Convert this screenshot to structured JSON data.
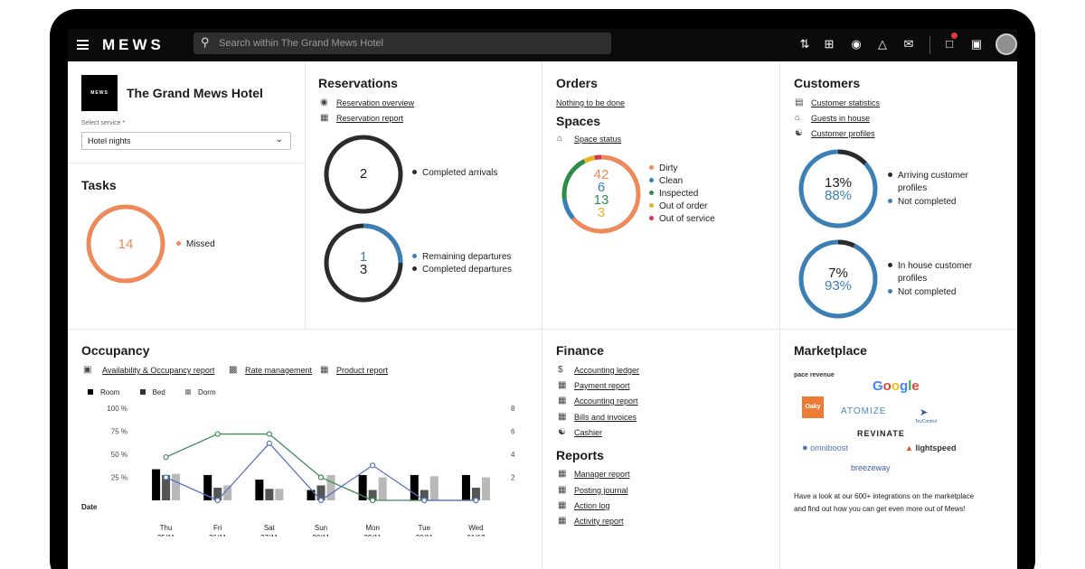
{
  "topbar": {
    "logo": "MEWS",
    "search_placeholder": "Search within The Grand Mews Hotel",
    "icons": [
      "menu-icon",
      "search-icon",
      "sort-icon",
      "add-square-icon",
      "eye-icon",
      "bell-icon",
      "mail-icon",
      "chat-icon",
      "gift-icon",
      "avatar"
    ]
  },
  "property": {
    "badge": "MEWS",
    "name": "The Grand Mews Hotel",
    "select_label": "Select service",
    "required_mark": "*",
    "selected_service": "Hotel nights"
  },
  "tasks": {
    "title": "Tasks",
    "count": "14",
    "legend": "Missed",
    "color": "#ee8a5a"
  },
  "reservations": {
    "title": "Reservations",
    "links": [
      "Reservation overview",
      "Reservation report"
    ],
    "arrivals": {
      "value": "2",
      "legend": "Completed arrivals"
    },
    "departures": {
      "remaining": "1",
      "completed": "3",
      "legend_remaining": "Remaining departures",
      "legend_completed": "Completed departures",
      "remaining_fraction": 0.25
    }
  },
  "orders": {
    "title": "Orders",
    "link": "Nothing to be done"
  },
  "spaces": {
    "title": "Spaces",
    "link": "Space status",
    "segments": [
      {
        "label": "Dirty",
        "value": "42",
        "color": "#ee8a5a"
      },
      {
        "label": "Clean",
        "value": "6",
        "color": "#3c7fb5"
      },
      {
        "label": "Inspected",
        "value": "13",
        "color": "#2e8b4a"
      },
      {
        "label": "Out of order",
        "value": "3",
        "color": "#e6b323"
      },
      {
        "label": "Out of service",
        "value": "",
        "color": "#d9344f"
      }
    ]
  },
  "customers": {
    "title": "Customers",
    "links": [
      "Customer statistics",
      "Guests in house",
      "Customer profiles"
    ],
    "arriving": {
      "completed_pct": "13%",
      "not_completed_pct": "88%",
      "legend_1": "Arriving customer",
      "legend_1b": "profiles",
      "legend_2": "Not completed",
      "fraction": 0.13
    },
    "inhouse": {
      "completed_pct": "7%",
      "not_completed_pct": "93%",
      "legend_1": "In house customer",
      "legend_1b": "profiles",
      "legend_2": "Not completed",
      "fraction": 0.07
    }
  },
  "occupancy": {
    "title": "Occupancy",
    "links": [
      "Availability & Occupancy report",
      "Rate management",
      "Product report"
    ],
    "date_label": "Date"
  },
  "chart_data": {
    "type": "bar",
    "categories": [
      "Thu 25/11",
      "Fri 26/11",
      "Sat 27/11",
      "Sun 28/11",
      "Mon 29/11",
      "Tue 30/11",
      "Wed 01/12"
    ],
    "day_names": [
      "Thu",
      "Fri",
      "Sat",
      "Sun",
      "Mon",
      "Tue",
      "Wed"
    ],
    "day_dates": [
      "25/11",
      "26/11",
      "27/11",
      "28/11",
      "29/11",
      "30/11",
      "01/12"
    ],
    "legend": [
      "Room",
      "Bed",
      "Dorm"
    ],
    "series": [
      {
        "name": "Room",
        "values": [
          2.7,
          2.2,
          1.8,
          0.9,
          2.2,
          2.2,
          2.2
        ],
        "color": "#000000"
      },
      {
        "name": "Bed",
        "values": [
          2.2,
          1.1,
          1.0,
          1.3,
          0.9,
          0.9,
          1.1
        ],
        "color": "#555555"
      },
      {
        "name": "Dorm",
        "values": [
          2.3,
          1.3,
          1.0,
          2.2,
          2.0,
          2.1,
          2.0
        ],
        "color": "#b8b8b8"
      }
    ],
    "lines": [
      {
        "values": [
          47,
          72,
          72,
          25,
          0,
          0,
          0
        ],
        "color": "#3f8a57"
      },
      {
        "values": [
          25,
          0,
          62,
          0,
          38,
          0,
          0
        ],
        "color": "#5a73c7"
      }
    ],
    "y_left_ticks": [
      "100 %",
      "75 %",
      "50 %",
      "25 %"
    ],
    "y_right_ticks": [
      "8",
      "6",
      "4",
      "2"
    ],
    "ylim_left": [
      0,
      100
    ],
    "ylim_right": [
      0,
      8
    ]
  },
  "finance": {
    "title": "Finance",
    "links": [
      "Accounting ledger",
      "Payment report",
      "Accounting report",
      "Bills and invoices",
      "Cashier"
    ]
  },
  "reports": {
    "title": "Reports",
    "links": [
      "Manager report",
      "Posting journal",
      "Action log",
      "Activity report"
    ]
  },
  "marketplace": {
    "title": "Marketplace",
    "brands": {
      "pace": "pace revenue",
      "google": "Google",
      "oaky": "Oaky",
      "atomize": "ATOMIZE",
      "tev": "TevControl",
      "revinate": "REVINATE",
      "omni": "omniboost",
      "light": "lightspeed",
      "breeze": "breezeway"
    },
    "text_1": "Have a look at our 600+ integrations on the marketplace",
    "text_2": "and find out how you can get even more out of Mews!"
  }
}
